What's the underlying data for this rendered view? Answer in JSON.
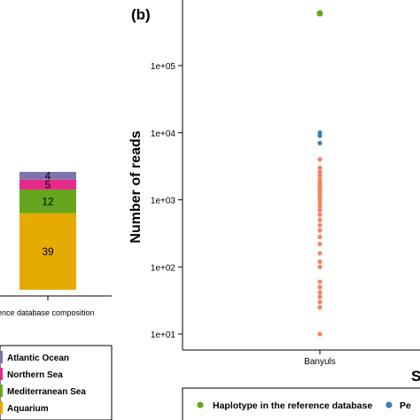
{
  "left_panel": {
    "xlabel": "rence database composition",
    "legend_items": [
      {
        "label": "Atlantic Ocean",
        "color": "#8073ac"
      },
      {
        "label": "Northern Sea",
        "color": "#e7298a"
      },
      {
        "label": "Mediterranean Sea",
        "color": "#66a61e"
      },
      {
        "label": "Aquarium",
        "color": "#e6ab02"
      }
    ]
  },
  "right_panel": {
    "panel_label": "(b)",
    "ylabel": "Number of reads",
    "xlabel_fragment": "S",
    "legend_items": [
      {
        "label": "Haplotype in the reference database",
        "color": "#66a61e"
      },
      {
        "label": "Pe",
        "color": "#377eb8"
      }
    ]
  },
  "chart_data": [
    {
      "type": "bar",
      "stacked": true,
      "categories": [
        ""
      ],
      "series": [
        {
          "name": "Aquarium",
          "values": [
            39
          ],
          "color": "#e6ab02"
        },
        {
          "name": "Mediterranean Sea",
          "values": [
            12
          ],
          "color": "#66a61e"
        },
        {
          "name": "Northern Sea",
          "values": [
            5
          ],
          "color": "#e7298a"
        },
        {
          "name": "Atlantic Ocean",
          "values": [
            4
          ],
          "color": "#8073ac"
        }
      ],
      "xlabel": "rence database composition",
      "ylabel": "",
      "ylim": [
        0,
        60
      ]
    },
    {
      "type": "scatter",
      "x_categories": [
        "Banyuls"
      ],
      "y_scale": "log10",
      "ylim": [
        10,
        1000000
      ],
      "y_ticks": [
        10,
        100,
        1000,
        10000,
        100000
      ],
      "y_tick_labels": [
        "1e+01",
        "1e+02",
        "1e+03",
        "1e+04",
        "1e+05"
      ],
      "ylabel": "Number of reads",
      "series": [
        {
          "name": "Haplotype in the reference database",
          "color": "#66a61e",
          "points": [
            {
              "x": "Banyuls",
              "y": 600000
            }
          ]
        },
        {
          "name": "Pe",
          "color": "#377eb8",
          "points": [
            {
              "x": "Banyuls",
              "y": 10000
            },
            {
              "x": "Banyuls",
              "y": 9000
            },
            {
              "x": "Banyuls",
              "y": 7000
            }
          ]
        },
        {
          "name": "",
          "color": "#f4845f",
          "points": [
            {
              "x": "Banyuls",
              "y": 4000
            },
            {
              "x": "Banyuls",
              "y": 3000
            },
            {
              "x": "Banyuls",
              "y": 2600
            },
            {
              "x": "Banyuls",
              "y": 2300
            },
            {
              "x": "Banyuls",
              "y": 2000
            },
            {
              "x": "Banyuls",
              "y": 1850
            },
            {
              "x": "Banyuls",
              "y": 1700
            },
            {
              "x": "Banyuls",
              "y": 1600
            },
            {
              "x": "Banyuls",
              "y": 1500
            },
            {
              "x": "Banyuls",
              "y": 1400
            },
            {
              "x": "Banyuls",
              "y": 1300
            },
            {
              "x": "Banyuls",
              "y": 1200
            },
            {
              "x": "Banyuls",
              "y": 1100
            },
            {
              "x": "Banyuls",
              "y": 1000
            },
            {
              "x": "Banyuls",
              "y": 900
            },
            {
              "x": "Banyuls",
              "y": 800
            },
            {
              "x": "Banyuls",
              "y": 700
            },
            {
              "x": "Banyuls",
              "y": 600
            },
            {
              "x": "Banyuls",
              "y": 500
            },
            {
              "x": "Banyuls",
              "y": 420
            },
            {
              "x": "Banyuls",
              "y": 350
            },
            {
              "x": "Banyuls",
              "y": 280
            },
            {
              "x": "Banyuls",
              "y": 220
            },
            {
              "x": "Banyuls",
              "y": 160
            },
            {
              "x": "Banyuls",
              "y": 120
            },
            {
              "x": "Banyuls",
              "y": 100
            },
            {
              "x": "Banyuls",
              "y": 60
            },
            {
              "x": "Banyuls",
              "y": 50
            },
            {
              "x": "Banyuls",
              "y": 42
            },
            {
              "x": "Banyuls",
              "y": 36
            },
            {
              "x": "Banyuls",
              "y": 30
            },
            {
              "x": "Banyuls",
              "y": 25
            },
            {
              "x": "Banyuls",
              "y": 10
            }
          ]
        }
      ]
    }
  ]
}
